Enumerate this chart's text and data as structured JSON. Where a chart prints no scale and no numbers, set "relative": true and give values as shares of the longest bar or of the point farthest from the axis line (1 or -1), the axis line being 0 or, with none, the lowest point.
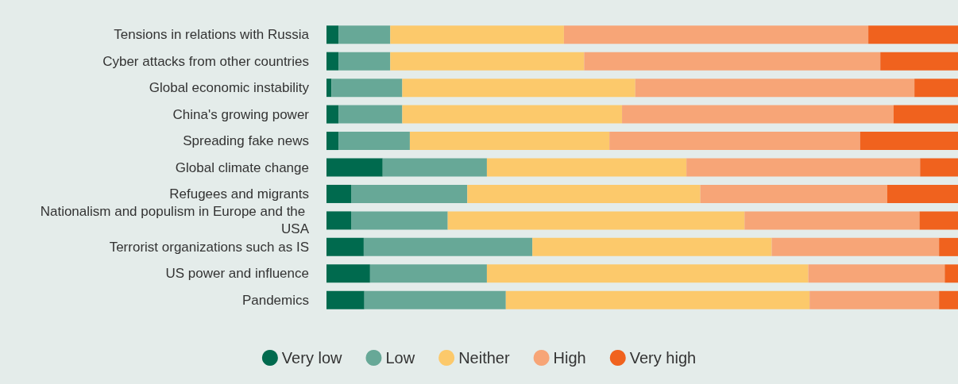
{
  "chart_data": {
    "type": "bar",
    "orientation": "horizontal",
    "stacked": true,
    "relative": true,
    "legend": "bottom",
    "categories": [
      "Tensions in relations with Russia",
      "Cyber attacks from other countries",
      "Global economic instability",
      "China's growing power",
      "Spreading fake news",
      "Global climate change",
      "Refugees and migrants",
      "Nationalism and populism in Europe and the USA",
      "Terrorist organizations such as IS",
      "US power and influence",
      "Pandemics"
    ],
    "series": [
      {
        "name": "Very low",
        "color": "#006a4e",
        "values": [
          0.019,
          0.019,
          0.008,
          0.019,
          0.019,
          0.089,
          0.039,
          0.039,
          0.059,
          0.069,
          0.06
        ]
      },
      {
        "name": "Low",
        "color": "#67a897",
        "values": [
          0.082,
          0.082,
          0.112,
          0.101,
          0.113,
          0.165,
          0.184,
          0.153,
          0.267,
          0.185,
          0.224
        ]
      },
      {
        "name": "Neither",
        "color": "#fcc96b",
        "values": [
          0.275,
          0.307,
          0.369,
          0.348,
          0.316,
          0.316,
          0.369,
          0.47,
          0.379,
          0.509,
          0.481
        ]
      },
      {
        "name": "High",
        "color": "#f7a577",
        "values": [
          0.482,
          0.469,
          0.442,
          0.43,
          0.397,
          0.37,
          0.296,
          0.277,
          0.265,
          0.216,
          0.205
        ]
      },
      {
        "name": "Very high",
        "color": "#f0621e",
        "values": [
          0.142,
          0.123,
          0.069,
          0.102,
          0.155,
          0.06,
          0.112,
          0.061,
          0.03,
          0.021,
          0.03
        ]
      }
    ]
  }
}
